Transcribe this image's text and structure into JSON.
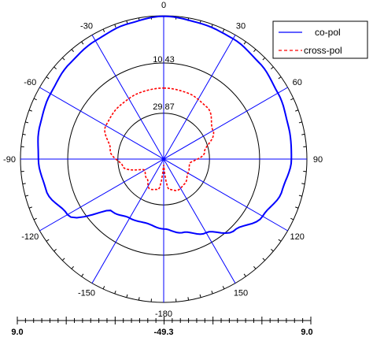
{
  "chart_data": {
    "type": "polar",
    "title": "",
    "angle_unit": "deg",
    "angle_ticks": [
      0,
      30,
      60,
      90,
      120,
      150,
      -180,
      -150,
      -120,
      -90,
      -60,
      -30
    ],
    "angle_labels": [
      "0",
      "30",
      "60",
      "90",
      "120",
      "150",
      "-180",
      "-150",
      "-120",
      "-90",
      "-60",
      "-30"
    ],
    "radial_scale": {
      "outer_db": 9.0,
      "center_db": -49.3,
      "tick_labels": [
        "9.0",
        "-49.3",
        "9.0"
      ]
    },
    "ring_labels": [
      "10.43",
      "29.87"
    ],
    "grid": true,
    "legend": {
      "position": "top-right",
      "items": [
        {
          "label": "co-pol",
          "color": "#0000ff",
          "style": "solid"
        },
        {
          "label": "cross-pol",
          "color": "#ff0000",
          "style": "dashed"
        }
      ]
    },
    "series": [
      {
        "name": "co-pol",
        "color": "#0000ff",
        "angles": [
          0,
          15,
          30,
          45,
          60,
          75,
          90,
          105,
          120,
          135,
          150,
          165,
          180,
          195,
          210,
          225,
          240,
          255,
          270,
          285,
          300,
          315,
          330,
          345,
          360
        ],
        "values": [
          8.8,
          7.9,
          7.2,
          5.9,
          4.4,
          3.2,
          2.7,
          0.6,
          -2.8,
          -8.4,
          -14.7,
          -18.4,
          -20.9,
          -22.3,
          -21.6,
          -19.4,
          -4.1,
          0.2,
          1.7,
          2.9,
          3.9,
          5.2,
          6.3,
          7.6,
          8.8
        ]
      },
      {
        "name": "cross-pol",
        "color": "#ff0000",
        "angles": [
          0,
          20,
          40,
          60,
          80,
          100,
          120,
          140,
          155,
          170,
          180,
          190,
          205,
          220,
          240,
          260,
          280,
          300,
          320,
          340,
          360
        ],
        "values": [
          -20.4,
          -20.7,
          -21.8,
          -26.1,
          -32.4,
          -38.6,
          -37.9,
          -36.1,
          -35.4,
          -36.7,
          -46.9,
          -36.7,
          -35.9,
          -38.8,
          -40.3,
          -32.4,
          -27.2,
          -22.1,
          -21.2,
          -20.6,
          -20.4
        ]
      }
    ]
  }
}
